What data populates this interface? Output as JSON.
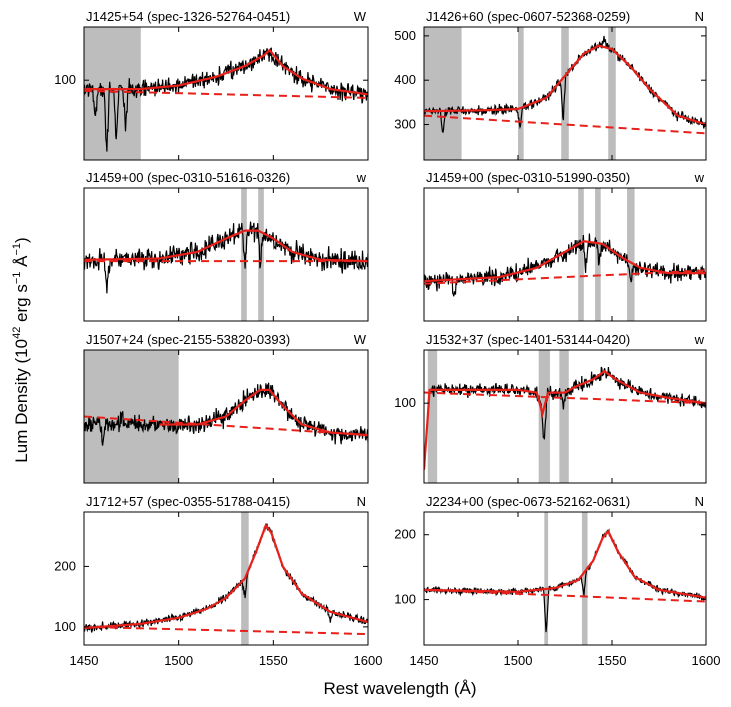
{
  "figure": {
    "ylabel": "Lum Density (10",
    "ylabel_exp1": "42",
    "ylabel_mid": " erg s",
    "ylabel_exp2": "−1",
    "ylabel_mid2": " Å",
    "ylabel_exp3": "−1",
    "ylabel_end": ")",
    "xlabel": "Rest wavelength (Å)",
    "xticks": [
      "1450",
      "1500",
      "1550",
      "1600"
    ],
    "colors": {
      "spectrum": "#000000",
      "model": "#e8201a",
      "continuum": "#e8201a",
      "mask": "#bdbdbd"
    }
  },
  "chart_data": [
    {
      "type": "line",
      "title": "J1425+54 (spec-1326-52764-0451)",
      "flag": "W",
      "xlim": [
        1450,
        1600
      ],
      "ylim": [
        55,
        130
      ],
      "yticks": [
        {
          "v": 100,
          "label": "100"
        }
      ],
      "masks": [
        [
          1450,
          1480
        ]
      ],
      "continuum": [
        [
          1450,
          94
        ],
        [
          1600,
          90
        ]
      ],
      "model": [
        [
          1450,
          95
        ],
        [
          1480,
          95
        ],
        [
          1500,
          97
        ],
        [
          1520,
          102
        ],
        [
          1535,
          108
        ],
        [
          1545,
          114
        ],
        [
          1548,
          117
        ],
        [
          1555,
          108
        ],
        [
          1565,
          101
        ],
        [
          1580,
          95
        ],
        [
          1600,
          92
        ]
      ],
      "noise": 3,
      "dips": [
        [
          1462,
          -35
        ],
        [
          1467,
          -30
        ],
        [
          1472,
          -22
        ],
        [
          1456,
          -15
        ]
      ]
    },
    {
      "type": "line",
      "title": "J1426+60 (spec-0607-52368-0259)",
      "flag": "N",
      "xlim": [
        1450,
        1600
      ],
      "ylim": [
        220,
        520
      ],
      "yticks": [
        {
          "v": 300,
          "label": "300"
        },
        {
          "v": 400,
          "label": "400"
        },
        {
          "v": 500,
          "label": "500"
        }
      ],
      "masks": [
        [
          1450,
          1470
        ],
        [
          1500,
          1503
        ],
        [
          1523,
          1527
        ],
        [
          1548,
          1552
        ]
      ],
      "continuum": [
        [
          1450,
          320
        ],
        [
          1600,
          280
        ]
      ],
      "model": [
        [
          1450,
          330
        ],
        [
          1480,
          332
        ],
        [
          1500,
          335
        ],
        [
          1515,
          360
        ],
        [
          1525,
          410
        ],
        [
          1535,
          460
        ],
        [
          1543,
          478
        ],
        [
          1550,
          470
        ],
        [
          1560,
          430
        ],
        [
          1570,
          380
        ],
        [
          1585,
          320
        ],
        [
          1600,
          300
        ]
      ],
      "noise": 6,
      "dips": [
        [
          1460,
          -50
        ],
        [
          1501,
          -40
        ],
        [
          1524,
          -100
        ],
        [
          1546,
          20
        ]
      ]
    },
    {
      "type": "line",
      "title": "J1459+00 (spec-0310-51616-0326)",
      "flag": "w",
      "xlim": [
        1450,
        1600
      ],
      "ylim": [
        0,
        100
      ],
      "yticks": [],
      "masks": [
        [
          1533,
          1536
        ],
        [
          1542,
          1545
        ]
      ],
      "continuum": [
        [
          1450,
          45
        ],
        [
          1600,
          45
        ]
      ],
      "model": [
        [
          1450,
          46
        ],
        [
          1490,
          47
        ],
        [
          1510,
          52
        ],
        [
          1525,
          62
        ],
        [
          1535,
          68
        ],
        [
          1542,
          68
        ],
        [
          1550,
          62
        ],
        [
          1560,
          52
        ],
        [
          1575,
          46
        ],
        [
          1600,
          45
        ]
      ],
      "noise": 5,
      "dips": [
        [
          1462,
          -25
        ],
        [
          1535,
          -30
        ],
        [
          1543,
          -25
        ]
      ]
    },
    {
      "type": "line",
      "title": "J1459+00 (spec-0310-51990-0350)",
      "flag": "w",
      "xlim": [
        1450,
        1600
      ],
      "ylim": [
        0,
        100
      ],
      "yticks": [],
      "masks": [
        [
          1532,
          1535
        ],
        [
          1541,
          1544
        ],
        [
          1558,
          1562
        ]
      ],
      "continuum": [
        [
          1450,
          28
        ],
        [
          1600,
          38
        ]
      ],
      "model": [
        [
          1450,
          30
        ],
        [
          1490,
          33
        ],
        [
          1510,
          40
        ],
        [
          1525,
          52
        ],
        [
          1535,
          60
        ],
        [
          1545,
          58
        ],
        [
          1555,
          48
        ],
        [
          1565,
          40
        ],
        [
          1580,
          36
        ],
        [
          1600,
          36
        ]
      ],
      "noise": 4,
      "dips": [
        [
          1466,
          -15
        ],
        [
          1536,
          -20
        ],
        [
          1543,
          -15
        ],
        [
          1560,
          -20
        ]
      ]
    },
    {
      "type": "line",
      "title": "J1507+24 (spec-2155-53820-0393)",
      "flag": "W",
      "xlim": [
        1450,
        1600
      ],
      "ylim": [
        0,
        100
      ],
      "yticks": [],
      "masks": [
        [
          1450,
          1500
        ]
      ],
      "continuum": [
        [
          1450,
          50
        ],
        [
          1600,
          36
        ]
      ],
      "model": [
        [
          1490,
          44
        ],
        [
          1510,
          44
        ],
        [
          1525,
          50
        ],
        [
          1535,
          62
        ],
        [
          1543,
          70
        ],
        [
          1548,
          70
        ],
        [
          1555,
          58
        ],
        [
          1565,
          44
        ],
        [
          1580,
          38
        ],
        [
          1600,
          36
        ]
      ],
      "noise": 4,
      "dips": [
        [
          1460,
          -12
        ],
        [
          1470,
          8
        ]
      ]
    },
    {
      "type": "line",
      "title": "J1532+37 (spec-1401-53144-0420)",
      "flag": "w",
      "xlim": [
        1450,
        1600
      ],
      "ylim": [
        40,
        140
      ],
      "yticks": [
        {
          "v": 100,
          "label": "100"
        }
      ],
      "masks": [
        [
          1452,
          1457
        ],
        [
          1511,
          1517
        ],
        [
          1522,
          1527
        ]
      ],
      "continuum": [
        [
          1450,
          108
        ],
        [
          1600,
          100
        ]
      ],
      "model": [
        [
          1450,
          50
        ],
        [
          1453,
          110
        ],
        [
          1460,
          110
        ],
        [
          1500,
          110
        ],
        [
          1510,
          108
        ],
        [
          1513,
          92
        ],
        [
          1516,
          108
        ],
        [
          1525,
          108
        ],
        [
          1530,
          112
        ],
        [
          1540,
          118
        ],
        [
          1546,
          124
        ],
        [
          1552,
          118
        ],
        [
          1565,
          108
        ],
        [
          1580,
          104
        ],
        [
          1600,
          100
        ]
      ],
      "noise": 3,
      "dips": [
        [
          1514,
          -25
        ],
        [
          1524,
          -12
        ]
      ]
    },
    {
      "type": "line",
      "title": "J1712+57 (spec-0355-51788-0415)",
      "flag": "N",
      "xlim": [
        1450,
        1600
      ],
      "ylim": [
        70,
        290
      ],
      "yticks": [
        {
          "v": 100,
          "label": "100"
        },
        {
          "v": 200,
          "label": "200"
        }
      ],
      "masks": [
        [
          1533,
          1537
        ]
      ],
      "continuum": [
        [
          1450,
          100
        ],
        [
          1600,
          88
        ]
      ],
      "model": [
        [
          1450,
          98
        ],
        [
          1480,
          105
        ],
        [
          1500,
          115
        ],
        [
          1515,
          130
        ],
        [
          1525,
          148
        ],
        [
          1535,
          180
        ],
        [
          1541,
          225
        ],
        [
          1546,
          268
        ],
        [
          1549,
          255
        ],
        [
          1555,
          200
        ],
        [
          1565,
          155
        ],
        [
          1580,
          125
        ],
        [
          1600,
          108
        ]
      ],
      "noise": 4,
      "dips": [
        [
          1535,
          -30
        ],
        [
          1580,
          -15
        ]
      ]
    },
    {
      "type": "line",
      "title": "J2234+00 (spec-0673-52162-0631)",
      "flag": "N",
      "xlim": [
        1450,
        1600
      ],
      "ylim": [
        30,
        235
      ],
      "yticks": [
        {
          "v": 100,
          "label": "100"
        },
        {
          "v": 200,
          "label": "200"
        }
      ],
      "masks": [
        [
          1514,
          1516
        ],
        [
          1534,
          1537
        ]
      ],
      "continuum": [
        [
          1450,
          115
        ],
        [
          1600,
          97
        ]
      ],
      "model": [
        [
          1450,
          115
        ],
        [
          1500,
          112
        ],
        [
          1520,
          118
        ],
        [
          1532,
          130
        ],
        [
          1540,
          160
        ],
        [
          1545,
          195
        ],
        [
          1548,
          205
        ],
        [
          1553,
          175
        ],
        [
          1562,
          135
        ],
        [
          1575,
          115
        ],
        [
          1600,
          103
        ]
      ],
      "noise": 3,
      "dips": [
        [
          1515,
          -70
        ],
        [
          1535,
          -35
        ]
      ]
    }
  ]
}
